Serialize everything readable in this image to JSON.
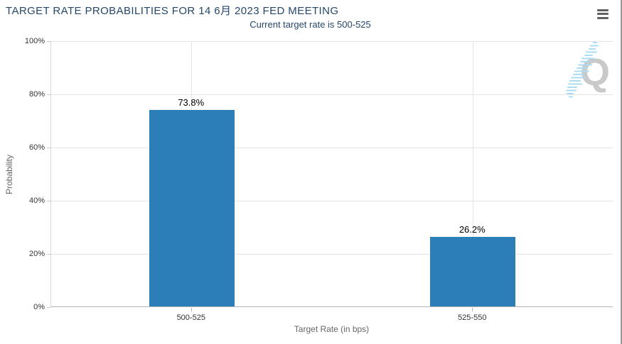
{
  "chart": {
    "menu_icon": "hamburger-icon",
    "watermark_letter": "Q"
  },
  "chart_data": {
    "type": "bar",
    "title": "TARGET RATE PROBABILITIES FOR 14 6月 2023 FED MEETING",
    "subtitle": "Current target rate is 500-525",
    "categories": [
      "500-525",
      "525-550"
    ],
    "values": [
      73.8,
      26.2
    ],
    "value_labels": [
      "73.8%",
      "26.2%"
    ],
    "xlabel": "Target Rate (in bps)",
    "ylabel": "Probability",
    "ylim": [
      0,
      100
    ],
    "yticks": [
      0,
      20,
      40,
      60,
      80,
      100
    ],
    "ytick_labels": [
      "0%",
      "20%",
      "40%",
      "60%",
      "80%",
      "100%"
    ],
    "grid": true,
    "legend": "none",
    "bar_color": "#2b7eb8"
  },
  "colors": {
    "title_text": "#25476a",
    "bar": "#2b7eb8",
    "gridline": "#e4e4e4",
    "axis_line": "#b3b3b3",
    "tick_label": "#333333",
    "axis_title": "#666666",
    "watermark_q": "#c9c9c9",
    "watermark_dash": "#abdcf4",
    "menu_icon": "#616161"
  }
}
